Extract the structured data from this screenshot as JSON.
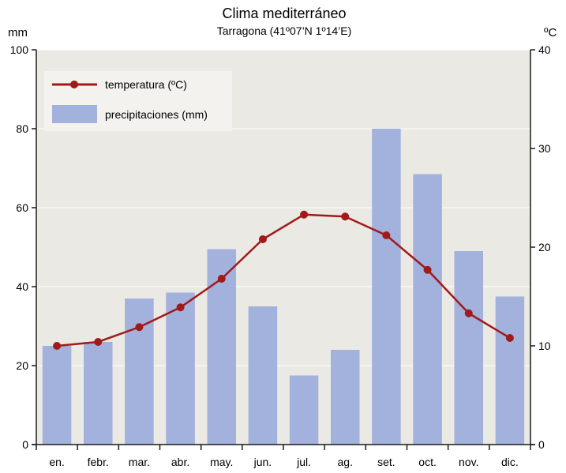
{
  "chart_data": {
    "type": "bar+line",
    "title": "Clima mediterráneo",
    "subtitle": "Tarragona (41º07’N 1º14’E)",
    "left_unit": "mm",
    "right_unit": "ºC",
    "categories": [
      "en.",
      "febr.",
      "mar.",
      "abr.",
      "may.",
      "jun.",
      "jul.",
      "ag.",
      "set.",
      "oct.",
      "nov.",
      "dic."
    ],
    "left_axis": {
      "range": [
        0,
        100
      ],
      "ticks": [
        "0",
        "20",
        "40",
        "60",
        "80",
        "100"
      ]
    },
    "right_axis": {
      "range": [
        0,
        40
      ],
      "ticks": [
        "0",
        "10",
        "20",
        "30",
        "40"
      ]
    },
    "grid": true,
    "legend": {
      "placement": "top-left"
    },
    "series": [
      {
        "name": "precipitaciones (mm)",
        "kind": "bar",
        "axis": "left",
        "color": "#a2b2dd",
        "values": [
          25,
          26,
          37,
          38.5,
          49.5,
          35,
          17.5,
          24,
          80,
          68.5,
          49,
          37.5
        ]
      },
      {
        "name": "temperatura (ºC)",
        "kind": "line",
        "axis": "right",
        "color": "#a01a1a",
        "values": [
          10,
          10.4,
          11.9,
          13.9,
          16.8,
          20.8,
          23.3,
          23.1,
          21.2,
          17.7,
          13.3,
          10.8
        ]
      }
    ],
    "colors": {
      "plot_bg": "#ebe9e3",
      "grid": "#ffffff",
      "axis": "#1a1a1a"
    }
  }
}
